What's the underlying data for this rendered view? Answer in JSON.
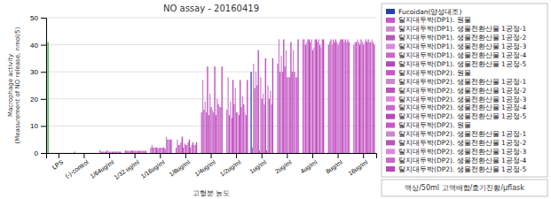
{
  "chart_data": {
    "type": "bar",
    "title": "NO assay  - 20160419",
    "xlabel": "고형분 농도",
    "ylabel": "Macrophage activity(Measurement of NO release, nmol/5)",
    "annotations": [
      "액상/50ml 고액배합/호기진황/μflask"
    ],
    "categories": [
      "LPS",
      "(-)-control",
      "1/64ug/ml",
      "1/32 ug/ml",
      "1/16ug/ml",
      "1/8ug/ml",
      "1/4ug/ml",
      "1/2ug/ml",
      "1ug/ml",
      "2ug/ml",
      "4ug/ml",
      "8ug/ml",
      "16ug/ml"
    ],
    "ylim": [
      0,
      50
    ],
    "yticks": [
      0,
      10,
      20,
      30,
      40,
      50
    ],
    "grid": true,
    "legend": "right",
    "series": [
      {
        "name": "Fucoidan(양성대조)",
        "color": "#2244aa",
        "colors": [
          "#33aa33",
          "#2244aa",
          "#2244aa",
          "#2244aa",
          "#2244aa",
          "#2244aa",
          "#2244aa",
          "#2244aa",
          "#2244aa",
          "#2244aa",
          "#2244aa",
          "#2244aa",
          "#2244aa"
        ],
        "values": [
          41,
          0,
          0,
          0,
          0,
          0,
          0,
          0,
          30,
          0,
          0,
          0,
          0
        ]
      },
      {
        "name": "탈지대두박(DP1). 원물",
        "color": "#cc55cc",
        "values": [
          0,
          0.5,
          1,
          1,
          2,
          2,
          15,
          16,
          2,
          33,
          42,
          40,
          40
        ]
      },
      {
        "name": "탈지대두박(DP1). 생물전환산물 1공정-1",
        "color": "#cc88cc",
        "values": [
          0,
          0,
          0.5,
          0.8,
          3,
          5,
          27,
          28,
          33,
          42,
          42,
          41,
          41
        ]
      },
      {
        "name": "탈지대두박(DP1). 생물전환산물 1공정-2",
        "color": "#bb55bb",
        "values": [
          0,
          0,
          0.5,
          0.8,
          2,
          3,
          16,
          14,
          24,
          30,
          40,
          42,
          41
        ]
      },
      {
        "name": "탈지대두박(DP1). 생물전환산물 1공정-3",
        "color": "#dd88dd",
        "values": [
          0,
          0,
          0.5,
          0.8,
          2,
          3,
          19,
          19,
          30,
          36,
          41,
          40,
          42
        ]
      },
      {
        "name": "탈지대두박(DP1). 생물전환산물 1공정-4",
        "color": "#cc66cc",
        "values": [
          0,
          0,
          0.5,
          0.8,
          2,
          4,
          15,
          13,
          25,
          30,
          42,
          42,
          41
        ]
      },
      {
        "name": "탈지대두박(DP1). 생물전환산물 1공정-5",
        "color": "#bb44bb",
        "values": [
          0,
          0,
          0.5,
          0.8,
          2,
          6,
          32,
          27,
          38,
          42,
          42,
          41,
          40
        ]
      },
      {
        "name": "탈지대두박(DP2). 원물",
        "color": "#cc55cc",
        "values": [
          0,
          0,
          1,
          1,
          1.5,
          2,
          14,
          18,
          1,
          32,
          41,
          42,
          42
        ]
      },
      {
        "name": "탈지대두박(DP2). 생물전환산물 1공정-1",
        "color": "#cc88cc",
        "values": [
          0,
          0,
          0.5,
          0.8,
          2,
          3.5,
          22,
          24,
          28,
          38,
          42,
          41,
          41
        ]
      },
      {
        "name": "탈지대두박(DP2). 생물전환산물 1공정-2",
        "color": "#bb55bb",
        "values": [
          0,
          0,
          0.5,
          0.8,
          2,
          3,
          17,
          15,
          20,
          28,
          38,
          40,
          40
        ]
      },
      {
        "name": "탈지대두박(DP2). 생물전환산물 1공정-3",
        "color": "#dd88dd",
        "values": [
          0,
          0,
          0.5,
          0.8,
          2,
          3,
          16,
          15,
          22,
          28,
          39,
          41,
          41
        ]
      },
      {
        "name": "탈지대두박(DP2). 생물전환산물 1공정-4",
        "color": "#cc66cc",
        "values": [
          0,
          0,
          0.5,
          0.8,
          2,
          4,
          15,
          14,
          18,
          28,
          42,
          42,
          42
        ]
      },
      {
        "name": "탈지대두박(DP2). 생물전환산물 1공정-5",
        "color": "#bb44bb",
        "values": [
          0,
          0,
          0.5,
          0.8,
          2,
          5,
          32,
          27,
          35,
          41,
          42,
          42,
          41
        ]
      },
      {
        "name": "탈지대두박(DP2). 원물",
        "color": "#cc55cc",
        "values": [
          0,
          0,
          0.5,
          0.8,
          1.5,
          2,
          14,
          17,
          1,
          30,
          41,
          42,
          42
        ]
      },
      {
        "name": "탈지대두박(DP2). 생물전환산물 1공정-1",
        "color": "#cc88cc",
        "values": [
          0,
          0,
          0.5,
          0.8,
          6,
          3,
          20,
          21,
          25,
          38,
          42,
          41,
          41
        ]
      },
      {
        "name": "탈지대두박(DP2). 생물전환산물 1공정-2",
        "color": "#bb55bb",
        "values": [
          0,
          0,
          0.5,
          0.8,
          5,
          4,
          18,
          18,
          20,
          30,
          40,
          42,
          41
        ]
      },
      {
        "name": "탈지대두박(DP2). 생물전환산물 1공정-3",
        "color": "#dd88dd",
        "values": [
          0,
          0,
          0.5,
          0.8,
          5,
          3,
          17,
          15,
          23,
          28,
          39,
          41,
          42
        ]
      },
      {
        "name": "탈지대두박(DP2). 생물전환산물 1공정-4",
        "color": "#cc66cc",
        "values": [
          0,
          0,
          0.5,
          0.8,
          5,
          3,
          17,
          14,
          18,
          28,
          42,
          42,
          41
        ]
      },
      {
        "name": "탈지대두박(DP2). 생물전환산물 1공정-5",
        "color": "#bb44bb",
        "values": [
          0,
          0,
          0.5,
          0.8,
          5,
          4,
          32,
          27,
          35,
          42,
          42,
          41,
          40
        ]
      }
    ]
  }
}
